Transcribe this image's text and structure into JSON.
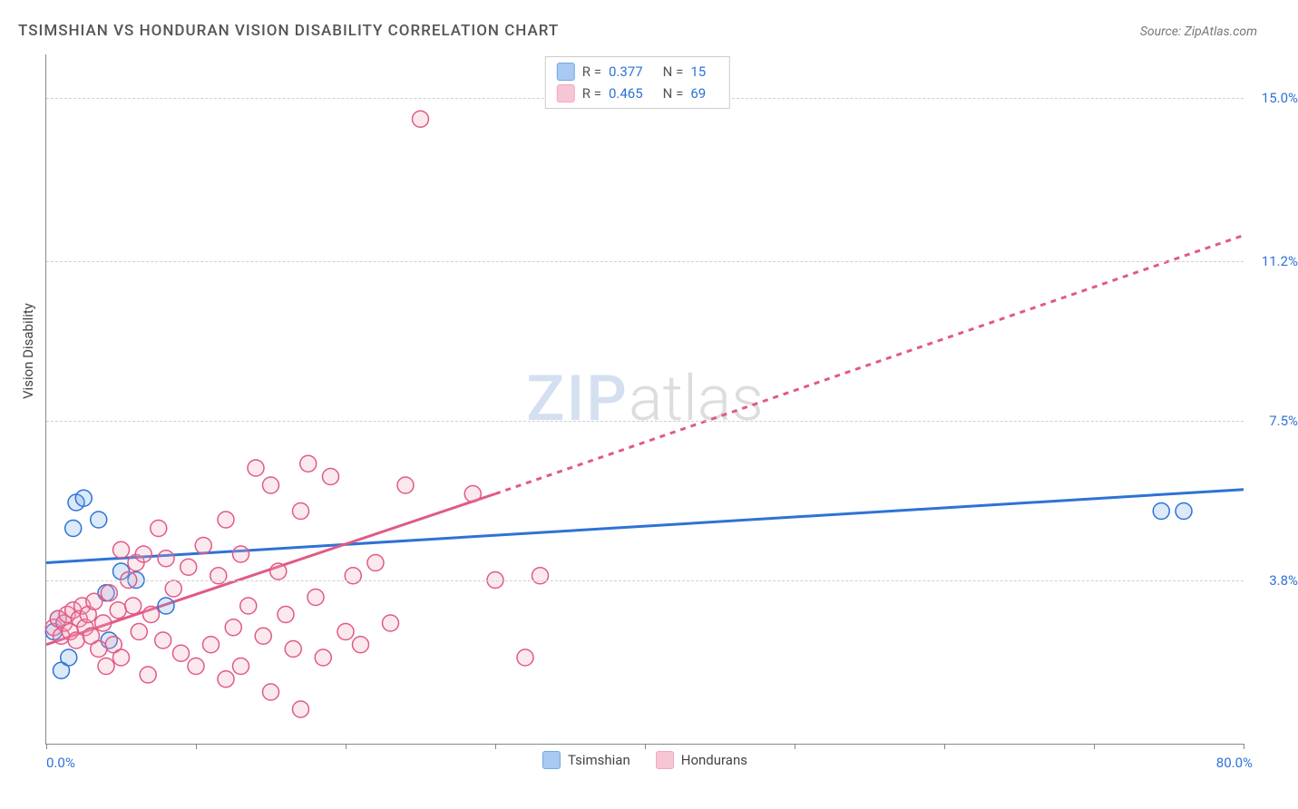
{
  "title": "TSIMSHIAN VS HONDURAN VISION DISABILITY CORRELATION CHART",
  "source_label": "Source: ZipAtlas.com",
  "watermark": {
    "part1": "ZIP",
    "part2": "atlas"
  },
  "y_axis_title": "Vision Disability",
  "chart": {
    "type": "scatter",
    "xlim": [
      0,
      80
    ],
    "ylim": [
      0,
      16
    ],
    "x_range_labels": {
      "min": "0.0%",
      "max": "80.0%"
    },
    "x_label_color": "#2f72d6",
    "x_range_min_pos_pct": 0,
    "x_range_max_pos_pct": 100,
    "yticks": [
      {
        "value": 3.8,
        "label": "3.8%",
        "color": "#2f72d6"
      },
      {
        "value": 7.5,
        "label": "7.5%",
        "color": "#2f72d6"
      },
      {
        "value": 11.2,
        "label": "11.2%",
        "color": "#2f72d6"
      },
      {
        "value": 15.0,
        "label": "15.0%",
        "color": "#2f72d6"
      }
    ],
    "xtick_positions": [
      0,
      10,
      20,
      30,
      40,
      50,
      60,
      70,
      80
    ],
    "grid_color": "#d0d0d0",
    "background_color": "#ffffff",
    "marker_radius": 9,
    "marker_stroke_width": 1.5,
    "marker_fill_opacity": 0.25,
    "series": [
      {
        "name": "Tsimshian",
        "color": "#6fa8e8",
        "stroke": "#2f72d6",
        "R": "0.377",
        "N": "15",
        "trend": {
          "solid": {
            "x1": 0,
            "y1": 4.2,
            "x2": 80,
            "y2": 5.9
          },
          "line_width": 3
        },
        "points": [
          [
            0.5,
            2.6
          ],
          [
            0.8,
            2.9
          ],
          [
            1.0,
            1.7
          ],
          [
            1.5,
            2.0
          ],
          [
            2.0,
            5.6
          ],
          [
            2.5,
            5.7
          ],
          [
            1.8,
            5.0
          ],
          [
            3.5,
            5.2
          ],
          [
            4.0,
            3.5
          ],
          [
            4.2,
            2.4
          ],
          [
            5.0,
            4.0
          ],
          [
            6.0,
            3.8
          ],
          [
            8.0,
            3.2
          ],
          [
            74.5,
            5.4
          ],
          [
            76.0,
            5.4
          ]
        ]
      },
      {
        "name": "Hondurans",
        "color": "#f2a9bd",
        "stroke": "#e05a86",
        "R": "0.465",
        "N": "69",
        "trend": {
          "solid": {
            "x1": 0,
            "y1": 2.3,
            "x2": 30,
            "y2": 5.8
          },
          "dashed": {
            "x1": 30,
            "y1": 5.8,
            "x2": 80,
            "y2": 11.8
          },
          "line_width": 3
        },
        "points": [
          [
            0.5,
            2.7
          ],
          [
            0.8,
            2.9
          ],
          [
            1.0,
            2.5
          ],
          [
            1.2,
            2.8
          ],
          [
            1.4,
            3.0
          ],
          [
            1.6,
            2.6
          ],
          [
            1.8,
            3.1
          ],
          [
            2.0,
            2.4
          ],
          [
            2.2,
            2.9
          ],
          [
            2.4,
            3.2
          ],
          [
            2.6,
            2.7
          ],
          [
            2.8,
            3.0
          ],
          [
            3.0,
            2.5
          ],
          [
            3.2,
            3.3
          ],
          [
            3.5,
            2.2
          ],
          [
            3.8,
            2.8
          ],
          [
            4.0,
            1.8
          ],
          [
            4.2,
            3.5
          ],
          [
            4.5,
            2.3
          ],
          [
            4.8,
            3.1
          ],
          [
            5.0,
            4.5
          ],
          [
            5.0,
            2.0
          ],
          [
            5.5,
            3.8
          ],
          [
            5.8,
            3.2
          ],
          [
            6.0,
            4.2
          ],
          [
            6.2,
            2.6
          ],
          [
            6.5,
            4.4
          ],
          [
            6.8,
            1.6
          ],
          [
            7.0,
            3.0
          ],
          [
            7.5,
            5.0
          ],
          [
            7.8,
            2.4
          ],
          [
            8.0,
            4.3
          ],
          [
            8.5,
            3.6
          ],
          [
            9.0,
            2.1
          ],
          [
            9.5,
            4.1
          ],
          [
            10.0,
            1.8
          ],
          [
            10.5,
            4.6
          ],
          [
            11.0,
            2.3
          ],
          [
            11.5,
            3.9
          ],
          [
            12.0,
            5.2
          ],
          [
            12.0,
            1.5
          ],
          [
            12.5,
            2.7
          ],
          [
            13.0,
            4.4
          ],
          [
            13.0,
            1.8
          ],
          [
            13.5,
            3.2
          ],
          [
            14.0,
            6.4
          ],
          [
            14.5,
            2.5
          ],
          [
            15.0,
            6.0
          ],
          [
            15.0,
            1.2
          ],
          [
            15.5,
            4.0
          ],
          [
            16.0,
            3.0
          ],
          [
            16.5,
            2.2
          ],
          [
            17.0,
            5.4
          ],
          [
            17.0,
            0.8
          ],
          [
            17.5,
            6.5
          ],
          [
            18.0,
            3.4
          ],
          [
            18.5,
            2.0
          ],
          [
            19.0,
            6.2
          ],
          [
            20.0,
            2.6
          ],
          [
            20.5,
            3.9
          ],
          [
            21.0,
            2.3
          ],
          [
            22.0,
            4.2
          ],
          [
            23.0,
            2.8
          ],
          [
            24.0,
            6.0
          ],
          [
            25.0,
            14.5
          ],
          [
            28.5,
            5.8
          ],
          [
            30.0,
            3.8
          ],
          [
            32.0,
            2.0
          ],
          [
            33.0,
            3.9
          ]
        ]
      }
    ]
  },
  "legend_top": {
    "rows": [
      {
        "swatch_fill": "#a9c9f2",
        "swatch_border": "#6fa8e8",
        "r_label": "R = ",
        "r_val": "0.377",
        "n_label": "N = ",
        "n_val": "15"
      },
      {
        "swatch_fill": "#f7c6d4",
        "swatch_border": "#f2a9bd",
        "r_label": "R = ",
        "r_val": "0.465",
        "n_label": "N = ",
        "n_val": "69"
      }
    ]
  },
  "legend_bottom": {
    "items": [
      {
        "swatch_fill": "#a9c9f2",
        "swatch_border": "#6fa8e8",
        "label": "Tsimshian"
      },
      {
        "swatch_fill": "#f7c6d4",
        "swatch_border": "#f2a9bd",
        "label": "Hondurans"
      }
    ]
  }
}
